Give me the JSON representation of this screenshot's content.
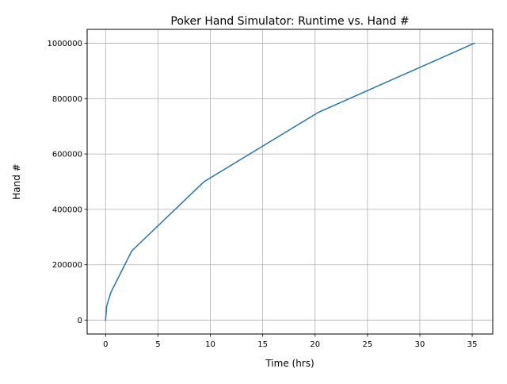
{
  "chart_data": {
    "type": "line",
    "title": "Poker Hand Simulator: Runtime vs. Hand #",
    "xlabel": "Time (hrs)",
    "ylabel": "Hand #",
    "xlim": [
      -1.76,
      36.96
    ],
    "ylim": [
      -50000,
      1050000
    ],
    "xticks": [
      0,
      5,
      10,
      15,
      20,
      25,
      30,
      35
    ],
    "xtick_labels": [
      "0",
      "5",
      "10",
      "15",
      "20",
      "25",
      "30",
      "35"
    ],
    "yticks": [
      0,
      200000,
      400000,
      600000,
      800000,
      1000000
    ],
    "ytick_labels": [
      "0",
      "200000",
      "400000",
      "600000",
      "800000",
      "1000000"
    ],
    "grid": true,
    "series": [
      {
        "color": "#1f77b4",
        "x": [
          0,
          0.05,
          0.1,
          0.5,
          2.5,
          9.4,
          20.3,
          35.2
        ],
        "y": [
          0,
          25000,
          50000,
          100000,
          250000,
          500000,
          750000,
          1000000
        ]
      }
    ]
  }
}
